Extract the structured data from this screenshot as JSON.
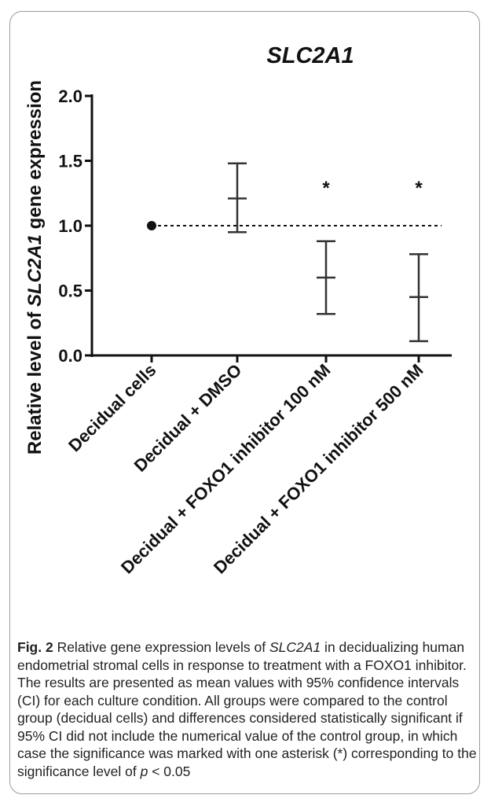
{
  "chart_data": {
    "type": "scatter",
    "title": "SLC2A1",
    "ylabel_prefix": "Relative level of ",
    "ylabel_italic": "SLC2A1",
    "ylabel_suffix": " gene expression",
    "ylim": [
      0,
      2
    ],
    "yticks": [
      "0.0",
      "0.5",
      "1.0",
      "1.5",
      "2.0"
    ],
    "ytick_values": [
      0,
      0.5,
      1.0,
      1.5,
      2.0
    ],
    "categories": [
      "Decidual cells",
      "Decidual + DMSO",
      "Decidual + FOXO1 inhibitor 100 nM",
      "Decidual + FOXO1 inhibitor 500 nM"
    ],
    "means": [
      1.0,
      1.21,
      0.6,
      0.45
    ],
    "ci_lower": [
      null,
      0.95,
      0.32,
      0.11
    ],
    "ci_upper": [
      null,
      1.48,
      0.88,
      0.78
    ],
    "significance": [
      "",
      "",
      "*",
      "*"
    ],
    "reference_line": 1.0,
    "grid": false,
    "colors": {
      "marker": "#111111",
      "errorbar": "#333333"
    }
  },
  "caption": {
    "fig_label": "Fig. 2",
    "text_1": " Relative gene expression levels of ",
    "gene": "SLC2A1",
    "text_2": " in decidualizing human endometrial stromal cells in response to treatment with a FOXO1 inhibitor. The results are presented as mean values with 95% confidence intervals (CI) for each culture condition. All groups were compared to the control group (decidual cells) and differences considered statistically significant if 95% CI did not include the numerical value of the control group, in which case the significance was marked with one asterisk (*) corresponding to the significance level of ",
    "p": "p",
    "text_3": " < 0.05"
  }
}
